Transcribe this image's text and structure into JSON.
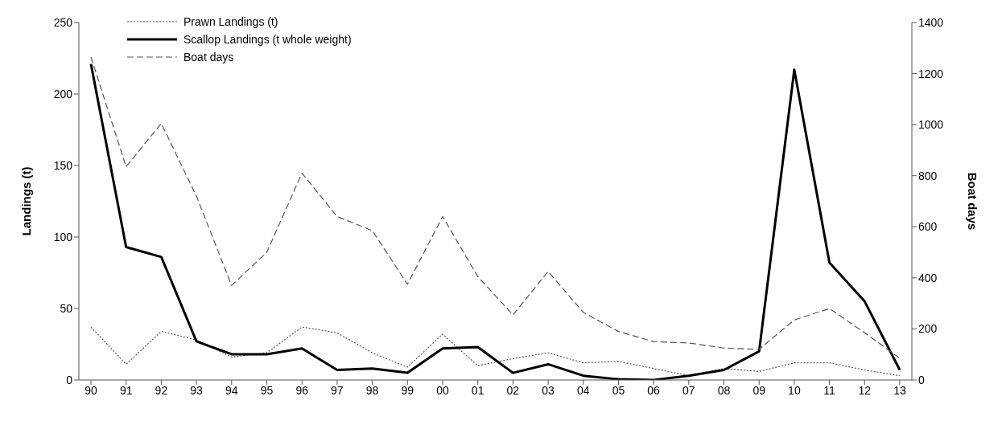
{
  "chart_data": {
    "type": "line",
    "xlabel": null,
    "ylabel": "Landings (t)",
    "y2label": "Boat days",
    "categories": [
      "90",
      "91",
      "92",
      "93",
      "94",
      "95",
      "96",
      "97",
      "98",
      "99",
      "00",
      "01",
      "02",
      "03",
      "04",
      "05",
      "06",
      "07",
      "08",
      "09",
      "10",
      "11",
      "12",
      "13"
    ],
    "series": [
      {
        "name": "Prawn Landings (t)",
        "color": "#555555",
        "line_style": "dotted",
        "values": [
          37,
          11,
          34,
          28,
          16,
          19,
          37,
          33,
          19,
          9,
          32,
          10,
          15,
          19,
          12,
          13,
          8,
          3,
          8,
          6,
          12,
          12,
          7,
          3
        ]
      },
      {
        "name": "Scallop Landings (t whole weight)",
        "color": "#000000",
        "line_style": "solid",
        "values": [
          221,
          93,
          86,
          27,
          18,
          18,
          22,
          7,
          8,
          5,
          22,
          23,
          5,
          11,
          3,
          0.5,
          0,
          3,
          7,
          20,
          217,
          82,
          55,
          7
        ]
      },
      {
        "name": "Boat days",
        "color": "#555555",
        "line_style": "dashed",
        "axis": "y2",
        "values": [
          1265,
          835,
          1005,
          720,
          370,
          500,
          810,
          640,
          585,
          375,
          640,
          405,
          255,
          425,
          265,
          190,
          150,
          145,
          125,
          120,
          235,
          280,
          185,
          85
        ]
      }
    ],
    "ylim": [
      0,
      250
    ],
    "yticks": [
      0,
      50,
      100,
      150,
      200,
      250
    ],
    "y2lim": [
      0,
      1400
    ],
    "y2ticks": [
      0,
      200,
      400,
      600,
      800,
      1000,
      1200,
      1400
    ],
    "grid": false,
    "legend": "top left",
    "marker": "none"
  }
}
